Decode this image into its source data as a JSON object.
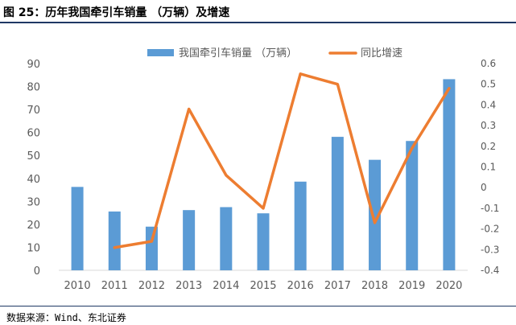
{
  "figure": {
    "title": "图 25：历年我国牵引车销量 （万辆）及增速",
    "source": "数据来源：Wind、东北证券"
  },
  "chart_data": {
    "type": "bar",
    "categories": [
      "2010",
      "2011",
      "2012",
      "2013",
      "2014",
      "2015",
      "2016",
      "2017",
      "2018",
      "2019",
      "2020"
    ],
    "series": [
      {
        "name": "我国牵引车销量 （万辆）",
        "type": "bar",
        "axis": "left",
        "color": "#5b9bd5",
        "values": [
          36.3,
          25.6,
          19.0,
          26.2,
          27.5,
          24.8,
          38.6,
          58.1,
          48.1,
          56.3,
          83.2
        ]
      },
      {
        "name": "同比增速",
        "type": "line",
        "axis": "right",
        "color": "#ed7d31",
        "values": [
          null,
          -0.29,
          -0.26,
          0.38,
          0.06,
          -0.1,
          0.55,
          0.5,
          -0.17,
          0.19,
          0.48
        ]
      }
    ],
    "y_left": {
      "min": 0,
      "max": 90,
      "ticks": [
        "0",
        "10",
        "20",
        "30",
        "40",
        "50",
        "60",
        "70",
        "80",
        "90"
      ]
    },
    "y_right": {
      "min": -0.4,
      "max": 0.6,
      "ticks": [
        "-0.4",
        "-0.3",
        "-0.2",
        "-0.1",
        "0",
        "0.1",
        "0.2",
        "0.3",
        "0.4",
        "0.5",
        "0.6"
      ]
    },
    "legend_position": "top",
    "grid": false
  }
}
